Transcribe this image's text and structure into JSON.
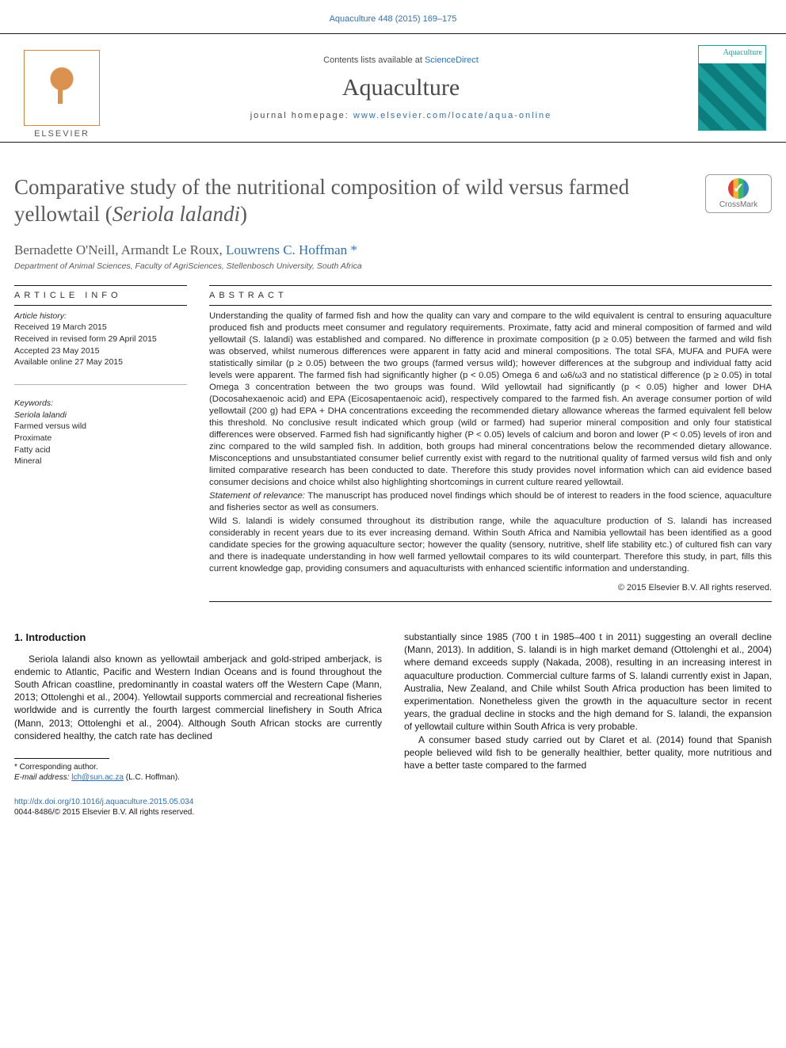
{
  "header": {
    "citation": "Aquaculture 448 (2015) 169–175",
    "contents_line_pre": "Contents lists available at ",
    "contents_line_link": "ScienceDirect",
    "journal_name": "Aquaculture",
    "homepage_pre": "journal homepage: ",
    "homepage_link": "www.elsevier.com/locate/aqua-online",
    "elsevier_brand": "ELSEVIER",
    "cover_label": "Aquaculture"
  },
  "article": {
    "title_pre": "Comparative study of the nutritional composition of wild versus farmed yellowtail (",
    "title_species": "Seriola lalandi",
    "title_post": ")",
    "crossmark": "CrossMark",
    "authors_plain": "Bernadette O'Neill, Armandt Le Roux, ",
    "author_corr": "Louwrens C. Hoffman",
    "author_corr_sym": " *",
    "affiliation": "Department of Animal Sciences, Faculty of AgriSciences, Stellenbosch University, South Africa"
  },
  "labels": {
    "article_info": "article info",
    "abstract": "abstract"
  },
  "history": {
    "head": "Article history:",
    "l1": "Received 19 March 2015",
    "l2": "Received in revised form 29 April 2015",
    "l3": "Accepted 23 May 2015",
    "l4": "Available online 27 May 2015"
  },
  "keywords": {
    "head": "Keywords:",
    "k1": "Seriola lalandi",
    "k2": "Farmed versus wild",
    "k3": "Proximate",
    "k4": "Fatty acid",
    "k5": "Mineral"
  },
  "abstract": {
    "p1": "Understanding the quality of farmed fish and how the quality can vary and compare to the wild equivalent is central to ensuring aquaculture produced fish and products meet consumer and regulatory requirements. Proximate, fatty acid and mineral composition of farmed and wild yellowtail (S. lalandi) was established and compared. No difference in proximate composition (p ≥ 0.05) between the farmed and wild fish was observed, whilst numerous differences were apparent in fatty acid and mineral compositions. The total SFA, MUFA and PUFA were statistically similar (p ≥ 0.05) between the two groups (farmed versus wild); however differences at the subgroup and individual fatty acid levels were apparent. The farmed fish had significantly higher (p < 0.05) Omega 6 and ω6/ω3 and no statistical difference (p ≥ 0.05) in total Omega 3 concentration between the two groups was found. Wild yellowtail had significantly (p < 0.05) higher and lower DHA (Docosahexaenoic acid) and EPA (Eicosapentaenoic acid), respectively compared to the farmed fish. An average consumer portion of wild yellowtail (200 g) had EPA + DHA concentrations exceeding the recommended dietary allowance whereas the farmed equivalent fell below this threshold. No conclusive result indicated which group (wild or farmed) had superior mineral composition and only four statistical differences were observed. Farmed fish had significantly higher (P < 0.05) levels of calcium and boron and lower (P < 0.05) levels of iron and zinc compared to the wild sampled fish. In addition, both groups had mineral concentrations below the recommended dietary allowance. Misconceptions and unsubstantiated consumer belief currently exist with regard to the nutritional quality of farmed versus wild fish and only limited comparative research has been conducted to date. Therefore this study provides novel information which can aid evidence based consumer decisions and choice whilst also highlighting shortcomings in current culture reared yellowtail.",
    "stmt_head": "Statement of relevance:",
    "stmt": " The manuscript has produced novel findings which should be of interest to readers in the food science, aquaculture and fisheries sector as well as consumers.",
    "p2": "Wild S. lalandi is widely consumed throughout its distribution range, while the aquaculture production of S. lalandi has increased considerably in recent years due to its ever increasing demand. Within South Africa and Namibia yellowtail has been identified as a good candidate species for the growing aquaculture sector; however the quality (sensory, nutritive, shelf life stability etc.) of cultured fish can vary and there is inadequate understanding in how well farmed yellowtail compares to its wild counterpart. Therefore this study, in part, fills this current knowledge gap, providing consumers and aquaculturists with enhanced scientific information and understanding.",
    "copyright": "© 2015 Elsevier B.V. All rights reserved."
  },
  "intro": {
    "heading": "1. Introduction",
    "col1": "Seriola lalandi also known as yellowtail amberjack and gold-striped amberjack, is endemic to Atlantic, Pacific and Western Indian Oceans and is found throughout the South African coastline, predominantly in coastal waters off the Western Cape (Mann, 2013; Ottolenghi et al., 2004). Yellowtail supports commercial and recreational fisheries worldwide and is currently the fourth largest commercial linefishery in South Africa (Mann, 2013; Ottolenghi et al., 2004). Although South African stocks are currently considered healthy, the catch rate has declined",
    "col2a": "substantially since 1985 (700 t in 1985–400 t in 2011) suggesting an overall decline (Mann, 2013). In addition, S. lalandi is in high market demand (Ottolenghi et al., 2004) where demand exceeds supply (Nakada, 2008), resulting in an increasing interest in aquaculture production. Commercial culture farms of S. lalandi currently exist in Japan, Australia, New Zealand, and Chile whilst South Africa production has been limited to experimentation. Nonetheless given the growth in the aquaculture sector in recent years, the gradual decline in stocks and the high demand for S. lalandi, the expansion of yellowtail culture within South Africa is very probable.",
    "col2b": "A consumer based study carried out by Claret et al. (2014) found that Spanish people believed wild fish to be generally healthier, better quality, more nutritious and have a better taste compared to the farmed"
  },
  "footnotes": {
    "corr": "* Corresponding author.",
    "email_label": "E-mail address: ",
    "email": "lch@sun.ac.za",
    "email_tail": " (L.C. Hoffman)."
  },
  "doi": {
    "link": "http://dx.doi.org/10.1016/j.aquaculture.2015.05.034",
    "line2": "0044-8486/© 2015 Elsevier B.V. All rights reserved."
  },
  "colors": {
    "link": "#3070b3",
    "text": "#1a1a1a",
    "grey": "#59595b",
    "teal": "#1a9f9e"
  }
}
